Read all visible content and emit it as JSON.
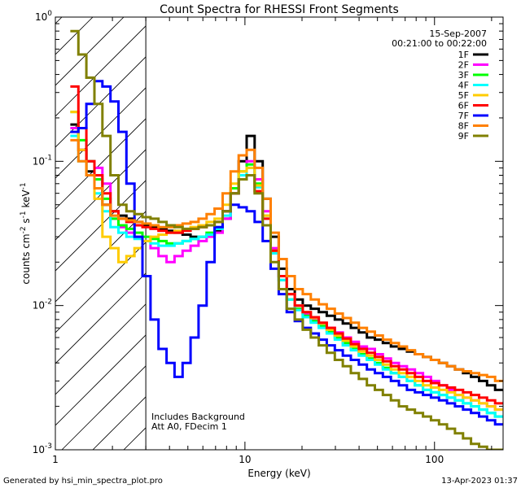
{
  "chart_data": {
    "type": "line",
    "title": "Count Spectra for RHESSI Front Segments",
    "xlabel": "Energy (keV)",
    "ylabel_prefix": "counts cm",
    "ylabel_exp1": "-2",
    "ylabel_mid": " s",
    "ylabel_exp2": "-1",
    "ylabel_mid2": " keV",
    "ylabel_exp3": "-1",
    "x_scale": "log",
    "y_scale": "log",
    "xlim": [
      1.0,
      230
    ],
    "ylim": [
      0.001,
      1.0
    ],
    "x_ticks": [
      {
        "value": 1,
        "label": "1"
      },
      {
        "value": 10,
        "label": "10"
      },
      {
        "value": 100,
        "label": "100"
      }
    ],
    "y_ticks": [
      {
        "value": 1.0,
        "base": "10",
        "exp": "0"
      },
      {
        "value": 0.1,
        "base": "10",
        "exp": "-1"
      },
      {
        "value": 0.01,
        "base": "10",
        "exp": "-2"
      },
      {
        "value": 0.001,
        "base": "10",
        "exp": "-3"
      }
    ],
    "date": "15-Sep-2007",
    "time_range": "00:21:00 to 00:22:00",
    "annotation_line1": "Includes Background",
    "annotation_line2": "Att A0, FDecim 1",
    "hatched_below_keV": 3.0,
    "legend_position": "top-right",
    "series": [
      {
        "name": "1F",
        "color": "#000000",
        "values": [
          0.18,
          0.12,
          0.085,
          0.065,
          0.05,
          0.045,
          0.042,
          0.04,
          0.038,
          0.036,
          0.035,
          0.034,
          0.033,
          0.032,
          0.031,
          0.03,
          0.03,
          0.031,
          0.033,
          0.04,
          0.06,
          0.1,
          0.15,
          0.1,
          0.055,
          0.03,
          0.018,
          0.013,
          0.011,
          0.01,
          0.0095,
          0.009,
          0.0085,
          0.008,
          0.0075,
          0.007,
          0.0065,
          0.006,
          0.0058,
          0.0055,
          0.0052,
          0.005,
          0.0048,
          0.0046,
          0.0044,
          0.0042,
          0.004,
          0.0038,
          0.0036,
          0.0034,
          0.0032,
          0.003,
          0.0028,
          0.0026
        ]
      },
      {
        "name": "2F",
        "color": "#ff00ff",
        "values": [
          0.17,
          0.12,
          0.1,
          0.09,
          0.07,
          0.04,
          0.035,
          0.032,
          0.03,
          0.028,
          0.025,
          0.022,
          0.02,
          0.022,
          0.024,
          0.026,
          0.028,
          0.03,
          0.032,
          0.04,
          0.06,
          0.08,
          0.1,
          0.075,
          0.045,
          0.025,
          0.016,
          0.012,
          0.01,
          0.0088,
          0.008,
          0.0075,
          0.007,
          0.0065,
          0.006,
          0.0056,
          0.0052,
          0.005,
          0.0046,
          0.0043,
          0.004,
          0.0038,
          0.0036,
          0.0034,
          0.0032,
          0.003,
          0.0028,
          0.0026,
          0.0024,
          0.0023,
          0.0022,
          0.0021,
          0.002,
          0.0019
        ]
      },
      {
        "name": "3F",
        "color": "#00ff00",
        "values": [
          0.22,
          0.14,
          0.1,
          0.075,
          0.055,
          0.04,
          0.036,
          0.034,
          0.032,
          0.03,
          0.029,
          0.028,
          0.027,
          0.027,
          0.028,
          0.029,
          0.03,
          0.032,
          0.035,
          0.045,
          0.065,
          0.085,
          0.095,
          0.07,
          0.042,
          0.024,
          0.015,
          0.011,
          0.0095,
          0.0085,
          0.0078,
          0.0072,
          0.0066,
          0.006,
          0.0055,
          0.005,
          0.0046,
          0.0043,
          0.004,
          0.0037,
          0.0034,
          0.0032,
          0.003,
          0.0028,
          0.0026,
          0.0025,
          0.0024,
          0.0023,
          0.0022,
          0.0021,
          0.002,
          0.0019,
          0.0018,
          0.0017
        ]
      },
      {
        "name": "4F",
        "color": "#00ffff",
        "values": [
          0.15,
          0.1,
          0.08,
          0.06,
          0.045,
          0.035,
          0.032,
          0.03,
          0.029,
          0.028,
          0.027,
          0.026,
          0.026,
          0.027,
          0.028,
          0.029,
          0.03,
          0.031,
          0.034,
          0.042,
          0.06,
          0.08,
          0.09,
          0.066,
          0.04,
          0.023,
          0.015,
          0.011,
          0.0093,
          0.0083,
          0.0076,
          0.007,
          0.0064,
          0.0058,
          0.0053,
          0.0049,
          0.0045,
          0.0042,
          0.0039,
          0.0036,
          0.0034,
          0.0032,
          0.003,
          0.0028,
          0.0026,
          0.0025,
          0.0024,
          0.0023,
          0.0022,
          0.0021,
          0.002,
          0.0019,
          0.0018,
          0.0017
        ]
      },
      {
        "name": "5F",
        "color": "#ffcc00",
        "values": [
          0.22,
          0.12,
          0.08,
          0.055,
          0.03,
          0.025,
          0.02,
          0.022,
          0.025,
          0.028,
          0.03,
          0.031,
          0.032,
          0.033,
          0.034,
          0.035,
          0.036,
          0.038,
          0.04,
          0.05,
          0.07,
          0.085,
          0.09,
          0.068,
          0.042,
          0.024,
          0.016,
          0.012,
          0.01,
          0.009,
          0.0082,
          0.0075,
          0.0068,
          0.0062,
          0.0057,
          0.0052,
          0.0048,
          0.0045,
          0.0042,
          0.0039,
          0.0036,
          0.0034,
          0.0032,
          0.003,
          0.0028,
          0.0027,
          0.0026,
          0.0025,
          0.0024,
          0.0023,
          0.0022,
          0.0021,
          0.002,
          0.0019
        ]
      },
      {
        "name": "6F",
        "color": "#ff0000",
        "values": [
          0.33,
          0.17,
          0.1,
          0.08,
          0.06,
          0.045,
          0.04,
          0.038,
          0.036,
          0.035,
          0.034,
          0.033,
          0.032,
          0.032,
          0.033,
          0.034,
          0.035,
          0.036,
          0.038,
          0.045,
          0.06,
          0.075,
          0.08,
          0.062,
          0.04,
          0.024,
          0.016,
          0.012,
          0.01,
          0.009,
          0.0083,
          0.0076,
          0.007,
          0.0064,
          0.0059,
          0.0054,
          0.005,
          0.0047,
          0.0044,
          0.0041,
          0.0038,
          0.0036,
          0.0034,
          0.0032,
          0.003,
          0.0029,
          0.0028,
          0.0027,
          0.0026,
          0.0025,
          0.0024,
          0.0023,
          0.0022,
          0.0021
        ]
      },
      {
        "name": "7F",
        "color": "#0000ff",
        "values": [
          0.16,
          0.17,
          0.25,
          0.36,
          0.33,
          0.26,
          0.16,
          0.07,
          0.03,
          0.016,
          0.008,
          0.005,
          0.004,
          0.0032,
          0.004,
          0.006,
          0.01,
          0.02,
          0.035,
          0.045,
          0.05,
          0.048,
          0.045,
          0.038,
          0.028,
          0.018,
          0.012,
          0.009,
          0.0078,
          0.007,
          0.0064,
          0.0058,
          0.0053,
          0.0049,
          0.0045,
          0.0042,
          0.0039,
          0.0036,
          0.0034,
          0.0032,
          0.003,
          0.0028,
          0.0026,
          0.0025,
          0.0024,
          0.0023,
          0.0022,
          0.0021,
          0.002,
          0.0019,
          0.0018,
          0.0017,
          0.0016,
          0.0015
        ]
      },
      {
        "name": "8F",
        "color": "#ff8000",
        "values": [
          0.14,
          0.1,
          0.08,
          0.065,
          0.05,
          0.042,
          0.04,
          0.039,
          0.038,
          0.037,
          0.036,
          0.035,
          0.035,
          0.036,
          0.037,
          0.038,
          0.04,
          0.043,
          0.047,
          0.06,
          0.085,
          0.11,
          0.12,
          0.09,
          0.055,
          0.032,
          0.021,
          0.016,
          0.013,
          0.012,
          0.011,
          0.0102,
          0.0095,
          0.0088,
          0.0082,
          0.0076,
          0.007,
          0.0066,
          0.0062,
          0.0058,
          0.0055,
          0.0052,
          0.0049,
          0.0046,
          0.0044,
          0.0042,
          0.004,
          0.0038,
          0.0036,
          0.0035,
          0.0034,
          0.0033,
          0.0032,
          0.003
        ]
      },
      {
        "name": "9F",
        "color": "#808000",
        "values": [
          0.8,
          0.55,
          0.38,
          0.25,
          0.15,
          0.08,
          0.05,
          0.045,
          0.043,
          0.041,
          0.04,
          0.038,
          0.036,
          0.035,
          0.034,
          0.034,
          0.035,
          0.036,
          0.038,
          0.045,
          0.06,
          0.075,
          0.08,
          0.06,
          0.036,
          0.02,
          0.013,
          0.0095,
          0.008,
          0.0068,
          0.006,
          0.0053,
          0.0047,
          0.0042,
          0.0038,
          0.0034,
          0.0031,
          0.0028,
          0.0026,
          0.0024,
          0.0022,
          0.002,
          0.0019,
          0.0018,
          0.0017,
          0.0016,
          0.0015,
          0.0014,
          0.0013,
          0.0012,
          0.0011,
          0.00105,
          0.001,
          0.001
        ]
      }
    ]
  },
  "footer": {
    "generated_by": "Generated by hsi_min_spectra_plot.pro",
    "timestamp": "13-Apr-2023 01:37"
  }
}
